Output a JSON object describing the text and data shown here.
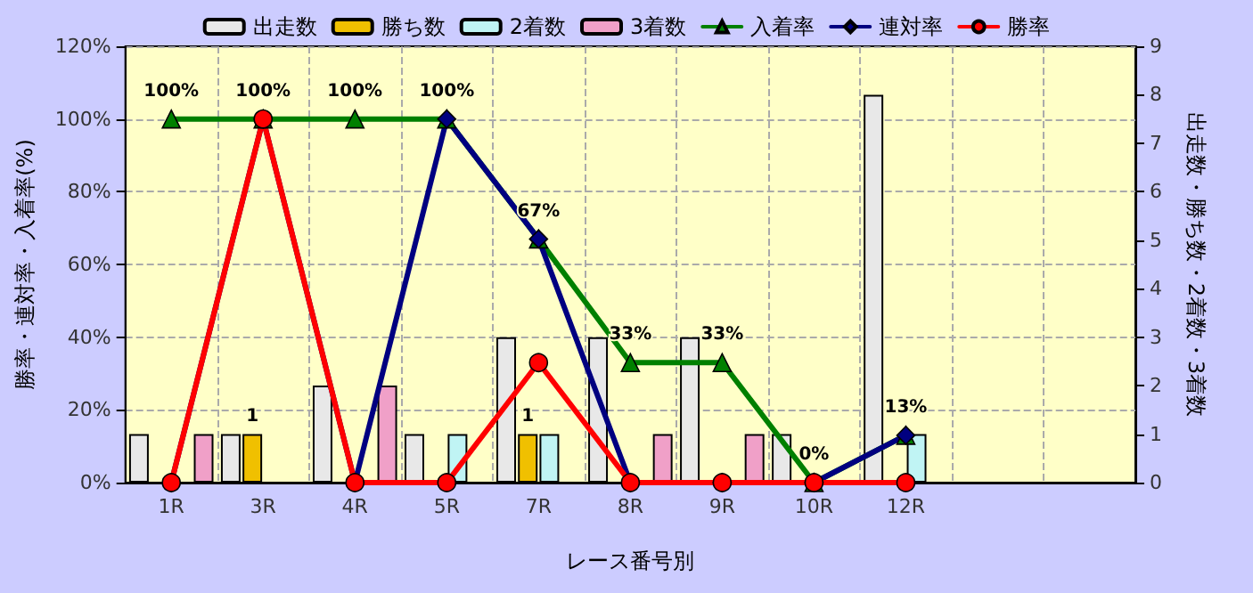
{
  "chart_data": {
    "type": "bar",
    "xlabel": "レース番号別",
    "ylabel": "勝率・連対率・入着率(%)",
    "y2label": "出走数・勝ち数・2着数・3着数",
    "categories": [
      "1R",
      "3R",
      "4R",
      "5R",
      "7R",
      "8R",
      "9R",
      "10R",
      "12R",
      null,
      null
    ],
    "series": [
      {
        "name": "出走数",
        "axis": "y2",
        "color": "#e8e8e8",
        "values": [
          1,
          1,
          2,
          1,
          3,
          3,
          3,
          1,
          8,
          null,
          null
        ]
      },
      {
        "name": "勝ち数",
        "axis": "y2",
        "color": "#f0c000",
        "values": [
          0,
          1,
          0,
          0,
          1,
          0,
          0,
          0,
          0,
          null,
          null
        ],
        "value_labels": [
          null,
          "1",
          null,
          null,
          "1",
          null,
          null,
          null,
          null,
          null,
          null
        ]
      },
      {
        "name": "2着数",
        "axis": "y2",
        "color": "#c0f4f4",
        "values": [
          0,
          0,
          0,
          1,
          1,
          0,
          0,
          0,
          1,
          null,
          null
        ]
      },
      {
        "name": "3着数",
        "axis": "y2",
        "color": "#f0a0c8",
        "values": [
          1,
          0,
          2,
          0,
          0,
          1,
          1,
          0,
          0,
          null,
          null
        ]
      },
      {
        "name": "入着率",
        "type": "line",
        "axis": "y",
        "color": "#008000",
        "marker": "triangle",
        "values": [
          100,
          100,
          100,
          100,
          67,
          33,
          33,
          0,
          13,
          null,
          null
        ],
        "value_labels": [
          "100%",
          "100%",
          "100%",
          "100%",
          "67%",
          "33%",
          "33%",
          "0%",
          "13%",
          null,
          null
        ]
      },
      {
        "name": "連対率",
        "type": "line",
        "axis": "y",
        "color": "#000080",
        "marker": "diamond",
        "values": [
          0,
          100,
          0,
          100,
          67,
          0,
          0,
          0,
          13,
          null,
          null
        ]
      },
      {
        "name": "勝率",
        "type": "line",
        "axis": "y",
        "color": "#ff0000",
        "marker": "circle",
        "values": [
          0,
          100,
          0,
          0,
          33,
          0,
          0,
          0,
          0,
          null,
          null
        ]
      }
    ],
    "ylim": [
      0,
      120
    ],
    "yticks": [
      {
        "value": 0,
        "label": "0%"
      },
      {
        "value": 20,
        "label": "20%"
      },
      {
        "value": 40,
        "label": "40%"
      },
      {
        "value": 60,
        "label": "60%"
      },
      {
        "value": 80,
        "label": "80%"
      },
      {
        "value": 100,
        "label": "100%"
      },
      {
        "value": 120,
        "label": "120%"
      }
    ],
    "y2lim": [
      0,
      9
    ],
    "y2ticks": [
      0,
      1,
      2,
      3,
      4,
      5,
      6,
      7,
      8,
      9
    ],
    "grid": true,
    "legend": "top",
    "line_style": "solid"
  }
}
